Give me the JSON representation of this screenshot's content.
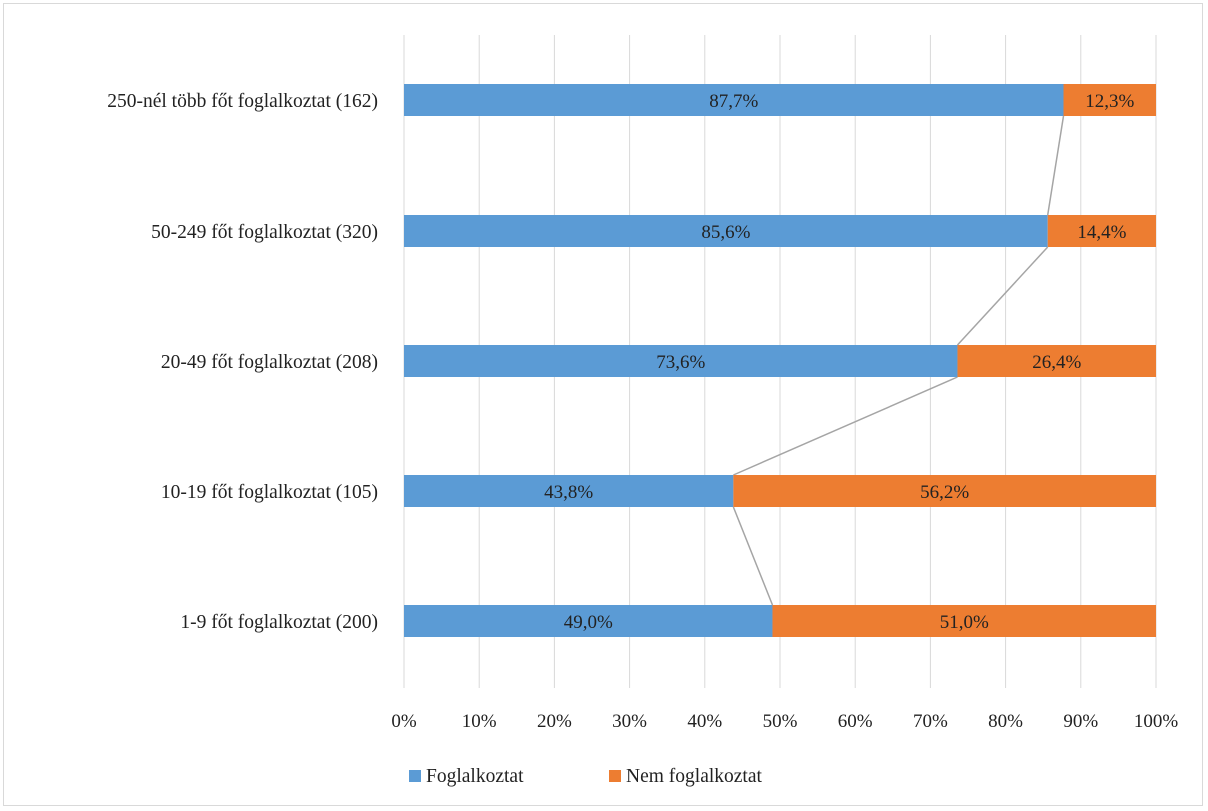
{
  "chart_data": {
    "type": "bar",
    "orientation": "horizontal",
    "stacked": "100%",
    "categories": [
      "250-nél több főt foglalkoztat (162)",
      "50-249 főt foglalkoztat (320)",
      "20-49 főt foglalkoztat (208)",
      "10-19 főt foglalkoztat (105)",
      "1-9 főt foglalkoztat (200)"
    ],
    "series": [
      {
        "name": "Foglalkoztat",
        "color": "#5b9bd5",
        "values": [
          87.7,
          85.6,
          73.6,
          43.8,
          49.0
        ],
        "labels": [
          "87,7%",
          "85,6%",
          "73,6%",
          "43,8%",
          "49,0%"
        ]
      },
      {
        "name": "Nem foglalkoztat",
        "color": "#ed7d31",
        "values": [
          12.3,
          14.4,
          26.4,
          56.2,
          51.0
        ],
        "labels": [
          "12,3%",
          "14,4%",
          "26,4%",
          "56,2%",
          "51,0%"
        ]
      }
    ],
    "x_ticks": [
      "0%",
      "10%",
      "20%",
      "30%",
      "40%",
      "50%",
      "60%",
      "70%",
      "80%",
      "90%",
      "100%"
    ],
    "xlim": [
      0,
      100
    ],
    "series_lines": true,
    "grid": true,
    "legend_position": "bottom",
    "title": "",
    "xlabel": "",
    "ylabel": ""
  }
}
